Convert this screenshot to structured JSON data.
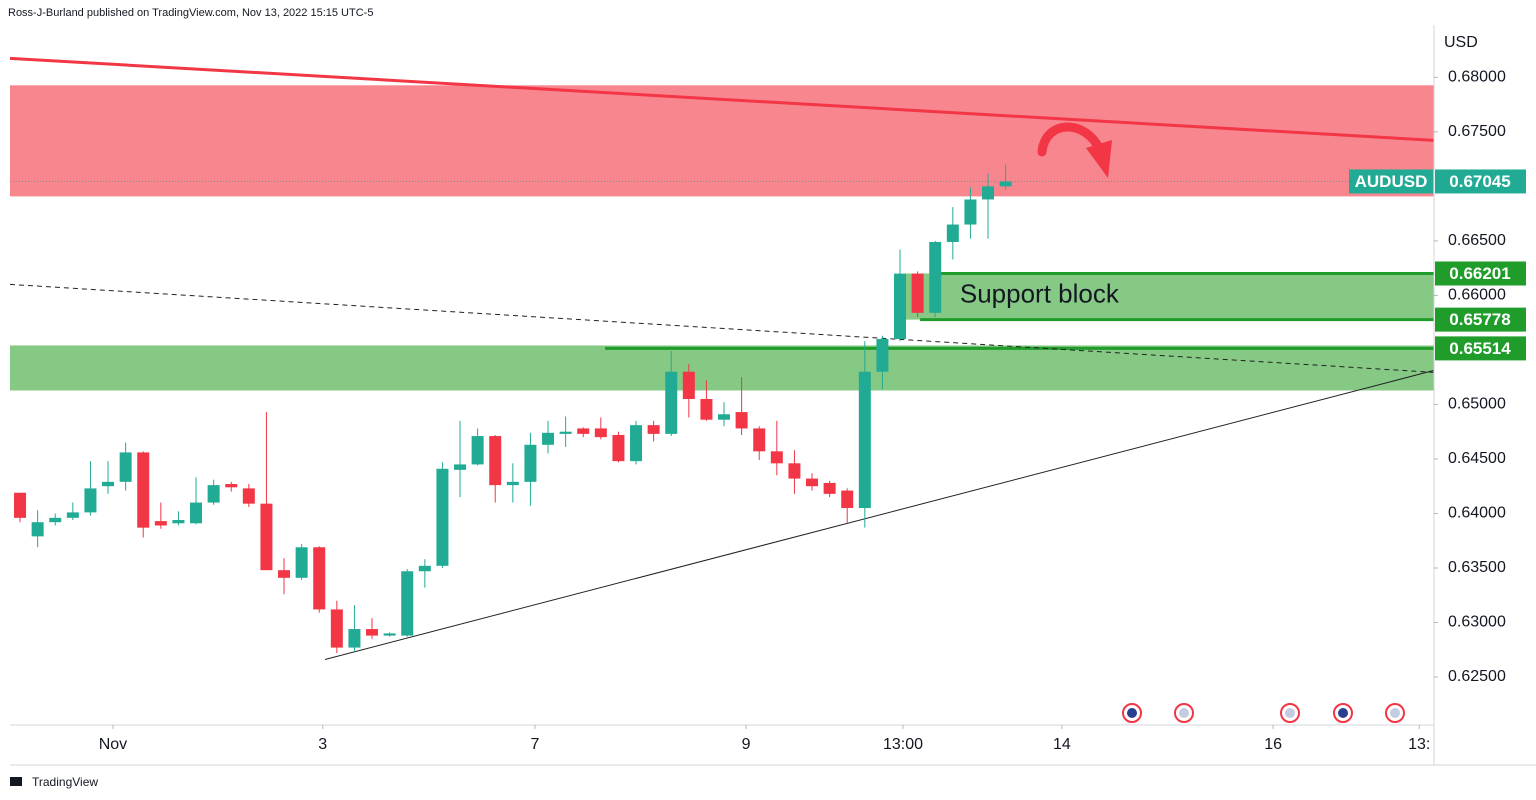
{
  "header": {
    "text": "Ross-J-Burland published on TradingView.com, Nov 13, 2022 15:15 UTC-5"
  },
  "footer": {
    "text": "TradingView"
  },
  "chart_data": {
    "type": "candlestick",
    "y_unit": "USD",
    "up_color": "#22ab94",
    "down_color": "#f23645",
    "xlim": [
      -0.57,
      80.34
    ],
    "ylim": [
      0.6206,
      0.6848
    ],
    "xticks": [
      {
        "value": 5.28,
        "label": "Nov"
      },
      {
        "value": 17.2,
        "label": "3"
      },
      {
        "value": 29.26,
        "label": "7"
      },
      {
        "value": 41.25,
        "label": "9"
      },
      {
        "value": 50.17,
        "label": "13:00"
      },
      {
        "value": 59.2,
        "label": "14"
      },
      {
        "value": 71.2,
        "label": "16"
      },
      {
        "value": 79.5,
        "label": "13:"
      }
    ],
    "yticks": [
      {
        "value": 0.68,
        "label": "0.68000"
      },
      {
        "value": 0.675,
        "label": "0.67500"
      },
      {
        "value": 0.665,
        "label": "0.66500"
      },
      {
        "value": 0.66,
        "label": "0.66000"
      },
      {
        "value": 0.65,
        "label": "0.65000"
      },
      {
        "value": 0.645,
        "label": "0.64500"
      },
      {
        "value": 0.64,
        "label": "0.64000"
      },
      {
        "value": 0.635,
        "label": "0.63500"
      },
      {
        "value": 0.63,
        "label": "0.63000"
      },
      {
        "value": 0.625,
        "label": "0.62500"
      }
    ],
    "x": [
      0,
      1,
      2,
      3,
      4,
      5,
      6,
      7,
      8,
      9,
      10,
      11,
      12,
      13,
      14,
      15,
      16,
      17,
      18,
      19,
      20,
      21,
      22,
      23,
      24,
      25,
      26,
      27,
      28,
      29,
      30,
      31,
      32,
      33,
      34,
      35,
      36,
      37,
      38,
      39,
      40,
      41,
      42,
      43,
      44,
      45,
      46,
      47,
      48,
      49,
      50,
      51,
      52,
      53,
      54,
      55,
      56
    ],
    "open": [
      0.6419,
      0.6379,
      0.6392,
      0.6396,
      0.6401,
      0.6425,
      0.6429,
      0.6456,
      0.6393,
      0.6391,
      0.6391,
      0.641,
      0.6427,
      0.6423,
      0.6409,
      0.6348,
      0.6341,
      0.6369,
      0.6312,
      0.6277,
      0.6294,
      0.6288,
      0.6288,
      0.6347,
      0.6352,
      0.644,
      0.6445,
      0.6471,
      0.6426,
      0.6429,
      0.6463,
      0.6473,
      0.6478,
      0.6478,
      0.6472,
      0.6448,
      0.6481,
      0.6473,
      0.653,
      0.6505,
      0.6486,
      0.6493,
      0.6478,
      0.6457,
      0.6446,
      0.6432,
      0.6428,
      0.6421,
      0.6405,
      0.653,
      0.656,
      0.662,
      0.6584,
      0.6649,
      0.6665,
      0.6688,
      0.67
    ],
    "high": [
      0.6419,
      0.6403,
      0.64,
      0.641,
      0.6448,
      0.6448,
      0.6465,
      0.6457,
      0.641,
      0.6402,
      0.6433,
      0.6431,
      0.6429,
      0.6427,
      0.6493,
      0.6359,
      0.6372,
      0.637,
      0.632,
      0.6316,
      0.6304,
      0.6291,
      0.6349,
      0.6358,
      0.6447,
      0.6485,
      0.6478,
      0.6472,
      0.6446,
      0.6474,
      0.6485,
      0.6489,
      0.6479,
      0.6488,
      0.6475,
      0.6485,
      0.6485,
      0.6549,
      0.6537,
      0.6522,
      0.6502,
      0.6525,
      0.648,
      0.6485,
      0.6458,
      0.6437,
      0.643,
      0.6423,
      0.6558,
      0.6563,
      0.6642,
      0.6622,
      0.665,
      0.6681,
      0.6699,
      0.6712,
      0.672
    ],
    "low": [
      0.6392,
      0.6369,
      0.6389,
      0.6394,
      0.6398,
      0.6418,
      0.6421,
      0.6378,
      0.6386,
      0.6389,
      0.639,
      0.6408,
      0.642,
      0.6406,
      0.6348,
      0.6326,
      0.6339,
      0.6309,
      0.6272,
      0.6273,
      0.6285,
      0.6287,
      0.6287,
      0.6332,
      0.635,
      0.6415,
      0.6444,
      0.641,
      0.641,
      0.6407,
      0.6455,
      0.6461,
      0.647,
      0.6468,
      0.6447,
      0.6445,
      0.6466,
      0.6471,
      0.6488,
      0.6485,
      0.648,
      0.6472,
      0.6449,
      0.6435,
      0.6418,
      0.6421,
      0.6415,
      0.6391,
      0.6387,
      0.6514,
      0.6558,
      0.658,
      0.658,
      0.6633,
      0.6652,
      0.6652,
      0.6697
    ],
    "close": [
      0.6396,
      0.6392,
      0.6396,
      0.6401,
      0.6423,
      0.6429,
      0.6456,
      0.6387,
      0.6389,
      0.6394,
      0.641,
      0.6426,
      0.6424,
      0.6409,
      0.6348,
      0.6341,
      0.6369,
      0.6312,
      0.6277,
      0.6294,
      0.6288,
      0.629,
      0.6347,
      0.6352,
      0.6441,
      0.6445,
      0.6471,
      0.6426,
      0.6429,
      0.6463,
      0.6474,
      0.6475,
      0.6473,
      0.647,
      0.6448,
      0.6481,
      0.6473,
      0.653,
      0.6505,
      0.6486,
      0.6491,
      0.6478,
      0.6457,
      0.6446,
      0.6432,
      0.6425,
      0.6418,
      0.6405,
      0.653,
      0.656,
      0.662,
      0.6584,
      0.6649,
      0.6665,
      0.6688,
      0.67,
      0.67045
    ],
    "zones": [
      {
        "from": 0.66908,
        "to": 0.67927,
        "color": "#f7868f"
      },
      {
        "from": 0.65128,
        "to": 0.65541,
        "color": "#85c985"
      },
      {
        "from": 0.65778,
        "to": 0.66201,
        "x_from": 50.28,
        "color": "#85c985"
      }
    ],
    "trend_lines": [
      {
        "x": [
          -0.57,
          80.34
        ],
        "y": [
          0.68174,
          0.67422
        ],
        "color": "#f23645",
        "width": 3
      },
      {
        "x": [
          -0.57,
          80.34
        ],
        "y": [
          0.66101,
          0.65294
        ],
        "color": "#222222",
        "width": 1,
        "dash": true
      },
      {
        "x": [
          17.33,
          80.34
        ],
        "y": [
          0.62661,
          0.65312
        ],
        "color": "#222222",
        "width": 1
      }
    ],
    "levels": [
      {
        "value": 0.66201,
        "x_from": 52.27
      },
      {
        "value": 0.65778,
        "x_from": 51.14
      },
      {
        "value": 0.65514,
        "x_from": 33.24
      }
    ],
    "level_color": "#1f9c2a",
    "last_price": {
      "name": "AUDUSD",
      "value": 0.67045,
      "color": "#22ab94"
    },
    "annotations": [
      {
        "text": "Support block",
        "x": 53.4,
        "y": 0.66
      }
    ]
  }
}
